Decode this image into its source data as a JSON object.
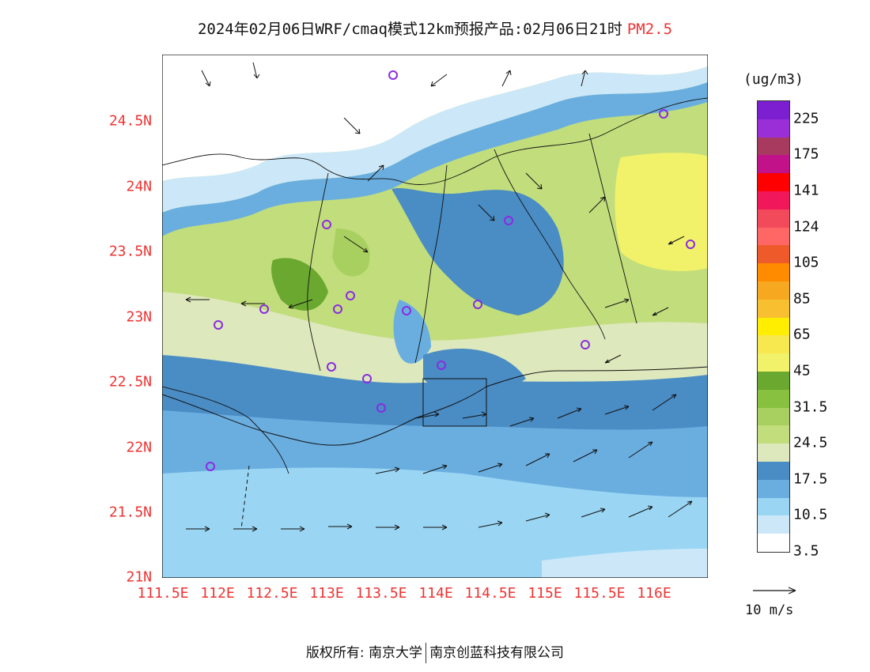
{
  "title": {
    "main": "2024年02月06日WRF/cmaq模式12km预报产品:02月06日21时",
    "species": "PM2.5"
  },
  "axes": {
    "lat_labels": [
      "24.5N",
      "24N",
      "23.5N",
      "23N",
      "22.5N",
      "22N",
      "21.5N",
      "21N"
    ],
    "lon_labels": [
      "111.5E",
      "112E",
      "112.5E",
      "113E",
      "113.5E",
      "114E",
      "114.5E",
      "115E",
      "115.5E",
      "116E"
    ]
  },
  "legend": {
    "unit": "(ug/m3)",
    "colors": [
      "#7b1fd0",
      "#9a2fd8",
      "#a83a60",
      "#c2128a",
      "#ff0000",
      "#f0185a",
      "#f24a5a",
      "#ff6666",
      "#ef5a2a",
      "#ff8c00",
      "#f6a820",
      "#f8c030",
      "#ffee00",
      "#f8e850",
      "#f2f26a",
      "#6aa830",
      "#88c040",
      "#a8d060",
      "#c2dd7c",
      "#dde8bc",
      "#4a8cc4",
      "#6aaee0",
      "#9ad6f4",
      "#cce8f8",
      "#ffffff"
    ],
    "labels": [
      "225",
      "175",
      "141",
      "124",
      "105",
      "85",
      "65",
      "45",
      "31.5",
      "24.5",
      "17.5",
      "10.5",
      "3.5"
    ]
  },
  "wind_key": {
    "label": "10 m/s"
  },
  "copyright": {
    "left": "版权所有: 南京大学",
    "right": "南京创蓝科技有限公司"
  }
}
